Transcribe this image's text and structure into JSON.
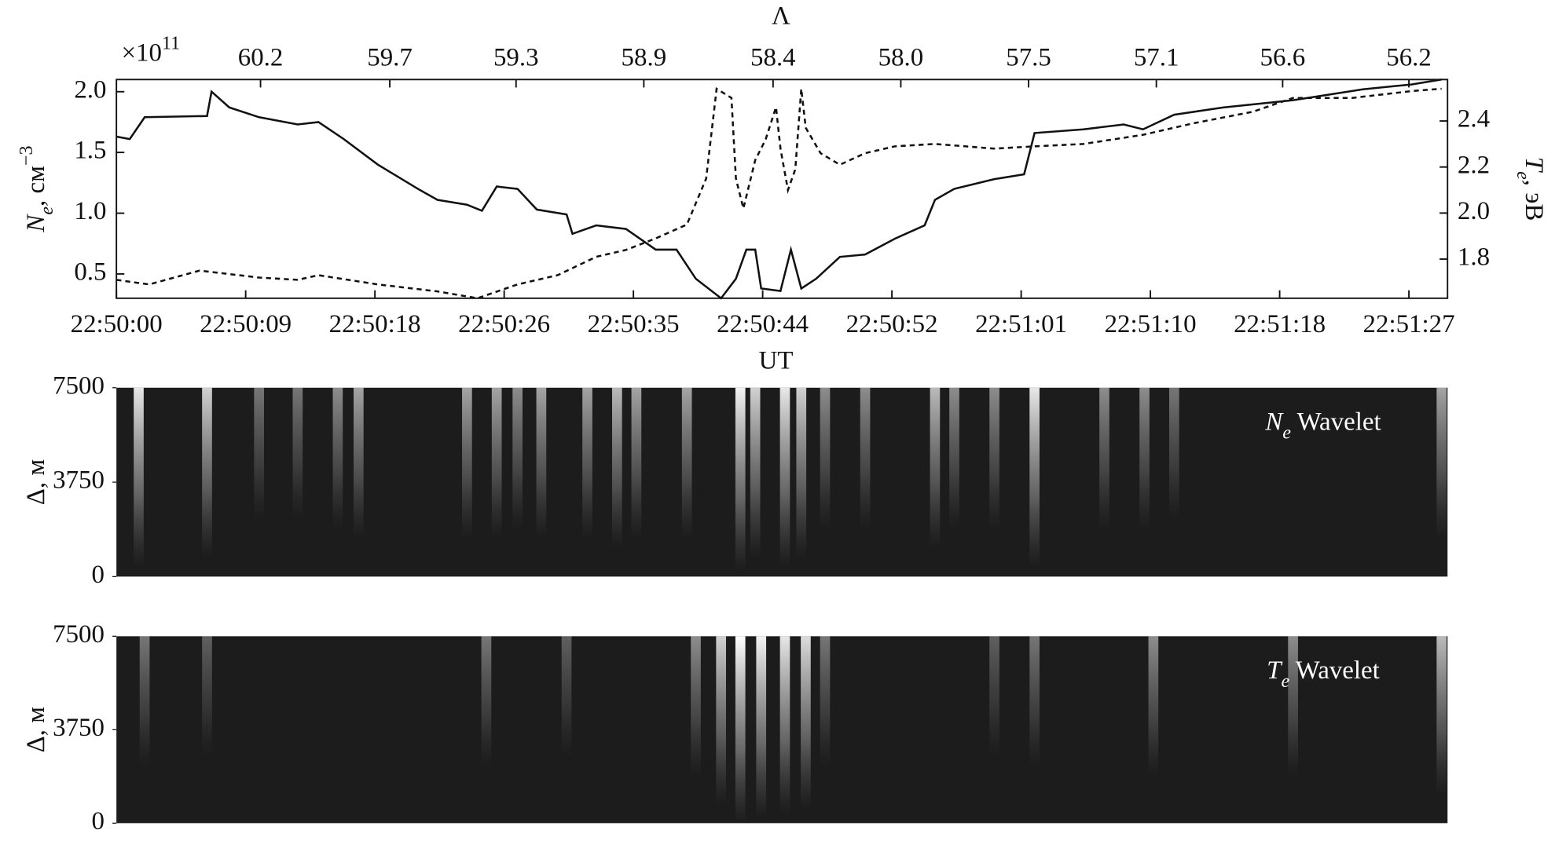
{
  "chart_data": [
    {
      "type": "line",
      "x_label": "UT",
      "x2_label": "Λ",
      "y_multiplier": [
        "×10",
        "11"
      ],
      "y_label": [
        "N",
        "e",
        ", см",
        "−3"
      ],
      "y2_label": [
        "T",
        "e",
        ", эВ"
      ],
      "xlim": [
        0,
        89.6
      ],
      "xticks": [
        {
          "value": 0,
          "label": "22:50:00"
        },
        {
          "value": 8.7,
          "label": "22:50:09"
        },
        {
          "value": 17.4,
          "label": "22:50:18"
        },
        {
          "value": 26.1,
          "label": "22:50:26"
        },
        {
          "value": 34.8,
          "label": "22:50:35"
        },
        {
          "value": 43.5,
          "label": "22:50:44"
        },
        {
          "value": 52.2,
          "label": "22:50:52"
        },
        {
          "value": 60.9,
          "label": "22:51:01"
        },
        {
          "value": 69.6,
          "label": "22:51:10"
        },
        {
          "value": 78.3,
          "label": "22:51:18"
        },
        {
          "value": 87,
          "label": "22:51:27"
        }
      ],
      "x2ticks": [
        {
          "value": 9.7,
          "label": "60.2"
        },
        {
          "value": 18.4,
          "label": "59.7"
        },
        {
          "value": 26.9,
          "label": "59.3"
        },
        {
          "value": 35.5,
          "label": "58.9"
        },
        {
          "value": 44.2,
          "label": "58.4"
        },
        {
          "value": 52.8,
          "label": "58.0"
        },
        {
          "value": 61.4,
          "label": "57.5"
        },
        {
          "value": 70.0,
          "label": "57.1"
        },
        {
          "value": 78.5,
          "label": "56.6"
        },
        {
          "value": 87.0,
          "label": "56.2"
        }
      ],
      "ylim": [
        0.3,
        2.1
      ],
      "yticks": [
        0.5,
        {
          "value": 1,
          "label": "1.0"
        },
        1.5,
        {
          "value": 2,
          "label": "2.0"
        }
      ],
      "y2lim": [
        1.63,
        2.58
      ],
      "y2ticks": [
        1.8,
        {
          "value": 2,
          "label": "2.0"
        },
        2.2,
        2.4
      ],
      "series": [
        {
          "color": "#111111",
          "style": "solid",
          "x": [
            0,
            0.9,
            1.9,
            6.1,
            6.4,
            7.6,
            9.6,
            12.2,
            13.6,
            15.3,
            17.6,
            20.3,
            21.6,
            23.6,
            24.6,
            25.6,
            27.0,
            28.3,
            30.3,
            30.7,
            32.3,
            34.3,
            36.3,
            37.7,
            39.0,
            40.7,
            41.7,
            42.4,
            43.0,
            43.4,
            44.7,
            45.4,
            46.1,
            47.1,
            48.7,
            50.4,
            52.4,
            54.4,
            55.1,
            56.4,
            59.1,
            61.1,
            61.8,
            65.1,
            67.8,
            69.1,
            71.2,
            74.5,
            79.2,
            83.9,
            87.2,
            89.2
          ],
          "values": [
            1.63,
            1.61,
            1.79,
            1.8,
            2.0,
            1.87,
            1.79,
            1.73,
            1.75,
            1.61,
            1.4,
            1.2,
            1.11,
            1.07,
            1.02,
            1.22,
            1.2,
            1.03,
            0.99,
            0.83,
            0.9,
            0.87,
            0.7,
            0.7,
            0.46,
            0.3,
            0.46,
            0.7,
            0.7,
            0.38,
            0.36,
            0.7,
            0.38,
            0.46,
            0.64,
            0.66,
            0.79,
            0.9,
            1.11,
            1.2,
            1.28,
            1.32,
            1.66,
            1.69,
            1.73,
            1.69,
            1.81,
            1.87,
            1.93,
            2.02,
            2.06,
            2.1
          ]
        },
        {
          "color": "#111111",
          "style": "dashed",
          "axis": "y2",
          "x": [
            0,
            2.2,
            5.6,
            9.6,
            12.2,
            13.6,
            17.6,
            21.6,
            24.3,
            27.0,
            29.7,
            32.3,
            34.3,
            36.3,
            38.4,
            39.7,
            40.4,
            41.4,
            41.7,
            42.2,
            43.0,
            43.7,
            44.4,
            44.7,
            45.2,
            45.7,
            46.1,
            46.4,
            47.4,
            48.7,
            50.4,
            52.4,
            55.1,
            59.1,
            61.8,
            65.1,
            69.1,
            72.5,
            76.5,
            79.2,
            83.2,
            87.2,
            89.2
          ],
          "values": [
            1.71,
            1.69,
            1.75,
            1.72,
            1.71,
            1.73,
            1.69,
            1.66,
            1.63,
            1.69,
            1.73,
            1.81,
            1.84,
            1.89,
            1.95,
            2.15,
            2.54,
            2.5,
            2.15,
            2.02,
            2.23,
            2.32,
            2.46,
            2.28,
            2.1,
            2.19,
            2.54,
            2.37,
            2.26,
            2.21,
            2.26,
            2.29,
            2.3,
            2.28,
            2.29,
            2.3,
            2.34,
            2.39,
            2.44,
            2.5,
            2.5,
            2.53,
            2.54
          ]
        }
      ]
    },
    {
      "type": "heatmap",
      "label": [
        "N",
        "e",
        " Wavelet"
      ],
      "y_label": [
        "Δ, м"
      ],
      "xlim": [
        0,
        89.6
      ],
      "ylim": [
        0,
        7500
      ],
      "yticks": [
        0,
        3750,
        7500
      ],
      "x": [
        1.5,
        6.1,
        9.6,
        12.2,
        14.9,
        16.3,
        23.6,
        25.6,
        27.0,
        28.6,
        31.7,
        33.7,
        35.0,
        38.4,
        42.0,
        43.0,
        45.0,
        46.1,
        47.7,
        50.4,
        55.1,
        56.4,
        59.1,
        61.8,
        66.5,
        69.2,
        71.2,
        89.2
      ],
      "values": [
        0.9,
        0.8,
        0.4,
        0.4,
        0.5,
        0.6,
        0.6,
        0.6,
        0.5,
        0.6,
        0.6,
        0.7,
        0.6,
        0.6,
        0.95,
        0.8,
        0.9,
        0.8,
        0.5,
        0.5,
        0.7,
        0.5,
        0.5,
        0.9,
        0.5,
        0.5,
        0.4,
        0.6
      ]
    },
    {
      "type": "heatmap",
      "label": [
        "T",
        "e",
        " Wavelet"
      ],
      "y_label": [
        "Δ, м"
      ],
      "xlim": [
        0,
        89.6
      ],
      "ylim": [
        0,
        7500
      ],
      "yticks": [
        0,
        3750,
        7500
      ],
      "x": [
        1.9,
        6.1,
        24.9,
        30.3,
        39.0,
        40.7,
        42.0,
        43.4,
        45.0,
        46.4,
        47.7,
        59.1,
        61.8,
        69.8,
        79.2,
        89.2
      ],
      "values": [
        0.4,
        0.3,
        0.4,
        0.3,
        0.5,
        0.8,
        1.0,
        0.95,
        0.9,
        0.85,
        0.4,
        0.3,
        0.4,
        0.5,
        0.5,
        0.7
      ]
    }
  ]
}
